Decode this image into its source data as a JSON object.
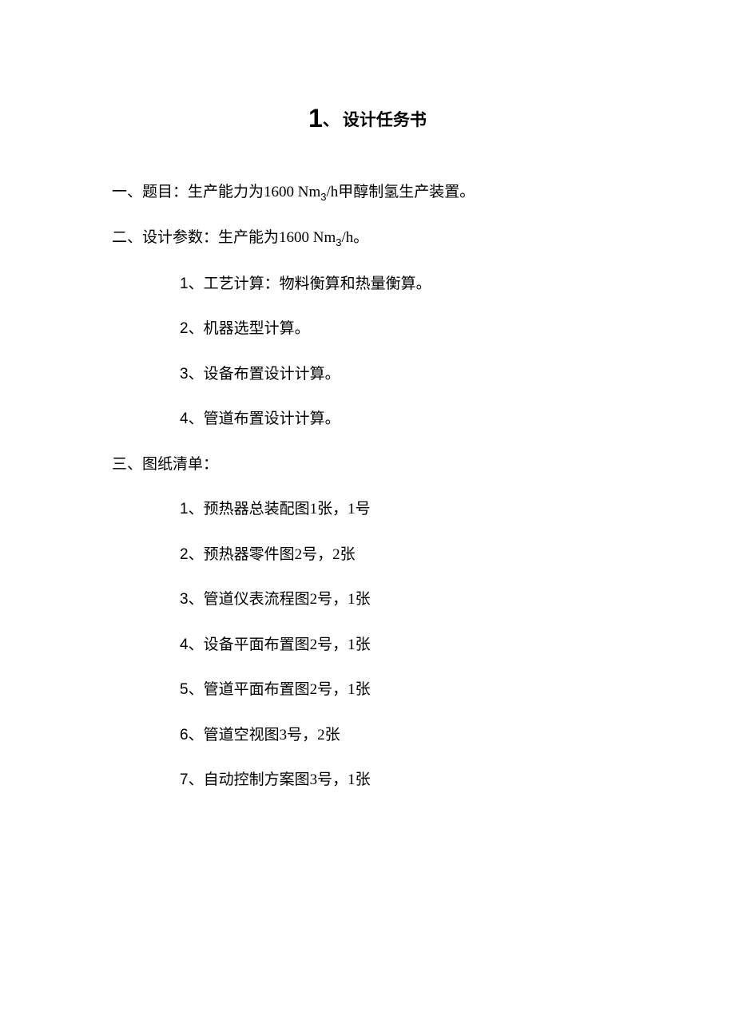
{
  "title": {
    "number": "1",
    "separator": "、",
    "text": "设计任务书"
  },
  "sections": [
    {
      "cnNum": "一、",
      "label": "题目：",
      "text_before": "生产能力为1600 Nm",
      "sub": "3",
      "text_after": "/h甲醇制氢生产装置。"
    },
    {
      "cnNum": "二、",
      "label": "设计参数：",
      "text_before": "生产能为1600 Nm",
      "sub": "3",
      "text_after": "/h。",
      "items": [
        {
          "num": "1、",
          "text": "工艺计算：物料衡算和热量衡算。"
        },
        {
          "num": "2、",
          "text": "机器选型计算。"
        },
        {
          "num": "3、",
          "text": "设备布置设计计算。"
        },
        {
          "num": "4、",
          "text": "管道布置设计计算。"
        }
      ]
    },
    {
      "cnNum": "三、",
      "label": "图纸清单：",
      "items": [
        {
          "num": "1、",
          "text": "预热器总装配图1张，1号"
        },
        {
          "num": "2、",
          "text": "预热器零件图2号，2张"
        },
        {
          "num": "3、",
          "text": "管道仪表流程图2号，1张"
        },
        {
          "num": "4、",
          "text": "设备平面布置图2号，1张"
        },
        {
          "num": "5、",
          "text": "管道平面布置图2号，1张"
        },
        {
          "num": "6、",
          "text": "管道空视图3号，2张"
        },
        {
          "num": "7、",
          "text": "自动控制方案图3号，1张"
        }
      ]
    }
  ]
}
